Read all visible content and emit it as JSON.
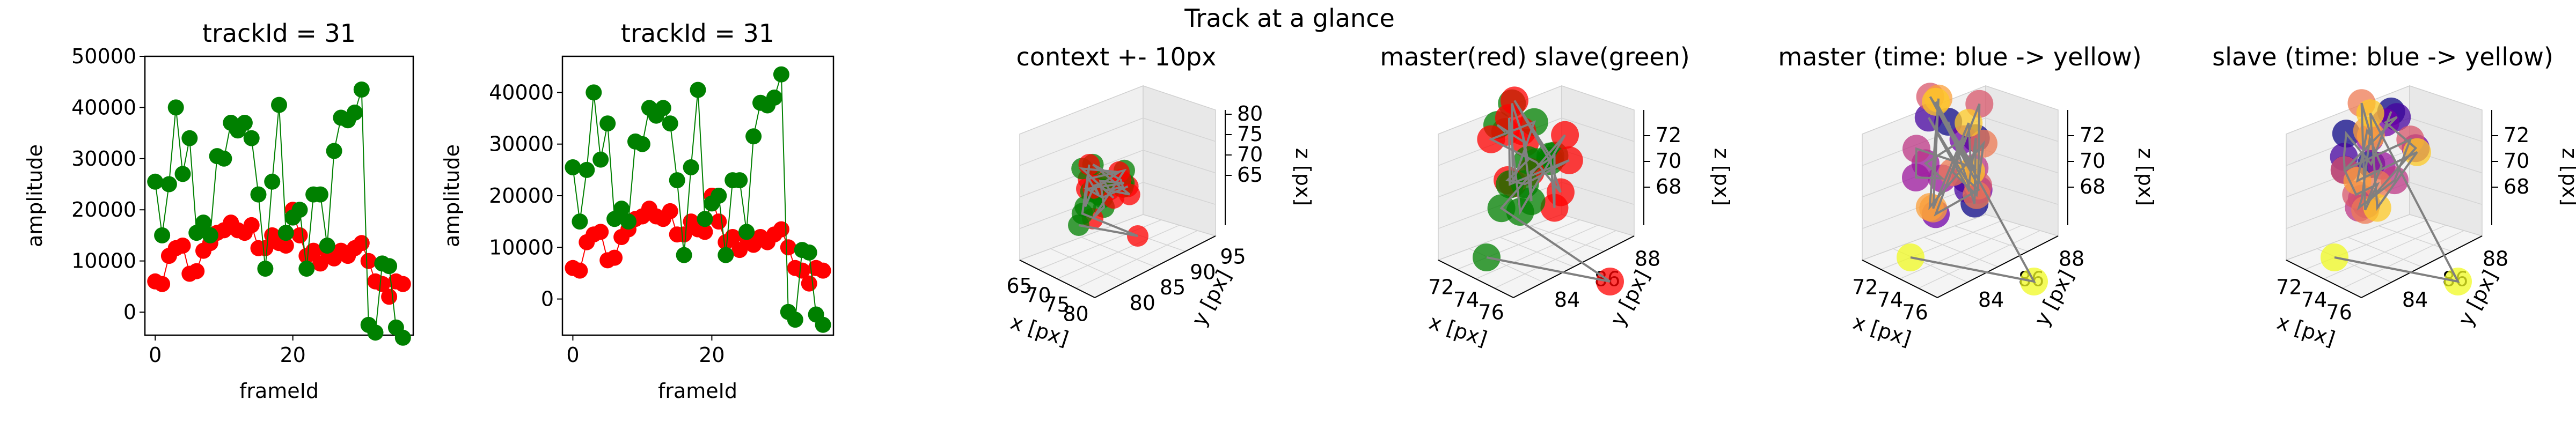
{
  "figure": {
    "suptitle": "Track at a glance"
  },
  "colors": {
    "master": "#ff0000",
    "slave": "#008000",
    "line": "#808080",
    "axis": "#000000"
  },
  "chart_data": [
    {
      "type": "line",
      "title": "trackId = 31",
      "xlabel": "frameId",
      "ylabel": "amplitude",
      "xlim": [
        -1.5,
        37.5
      ],
      "ylim": [
        -4500,
        50000
      ],
      "xticks": [
        0,
        20
      ],
      "yticks": [
        0,
        10000,
        20000,
        30000,
        40000,
        50000
      ],
      "series": [
        {
          "color": "red",
          "x": [
            0,
            1,
            2,
            3,
            4,
            5,
            6,
            7,
            8,
            9,
            10,
            11,
            12,
            13,
            14,
            15,
            16,
            17,
            18,
            19,
            20,
            21,
            22,
            23,
            24,
            25,
            26,
            27,
            28,
            29,
            30,
            31,
            32,
            33,
            34,
            35,
            36
          ],
          "values": [
            6000,
            5500,
            11000,
            12500,
            13000,
            7500,
            8000,
            12000,
            13500,
            15500,
            16000,
            17500,
            16000,
            15500,
            17000,
            12500,
            12500,
            15000,
            13500,
            13000,
            20000,
            15000,
            11000,
            12000,
            9500,
            12000,
            10500,
            12000,
            11000,
            12500,
            13500,
            10000,
            6000,
            5500,
            3000,
            6000,
            5500
          ]
        },
        {
          "color": "green",
          "x": [
            0,
            1,
            2,
            3,
            4,
            5,
            6,
            7,
            8,
            9,
            10,
            11,
            12,
            13,
            14,
            15,
            16,
            17,
            18,
            19,
            20,
            21,
            22,
            23,
            24,
            25,
            26,
            27,
            28,
            29,
            30,
            31,
            32,
            33,
            34,
            35,
            36
          ],
          "values": [
            25500,
            15000,
            25000,
            40000,
            27000,
            34000,
            15500,
            17500,
            15000,
            30500,
            30000,
            37000,
            35500,
            37000,
            34000,
            23000,
            8500,
            25500,
            40500,
            15500,
            18500,
            20000,
            8500,
            23000,
            23000,
            13000,
            31500,
            38000,
            37500,
            39000,
            43500,
            -2500,
            -4000,
            9500,
            9000,
            -3000,
            -5000
          ]
        }
      ]
    },
    {
      "type": "line",
      "title": "trackId = 31",
      "xlabel": "frameId",
      "ylabel": "amplitude",
      "xlim": [
        -1.5,
        37.5
      ],
      "ylim": [
        -7000,
        47000
      ],
      "xticks": [
        0,
        20
      ],
      "yticks": [
        0,
        10000,
        20000,
        30000,
        40000
      ],
      "series": [
        {
          "color": "red",
          "x": [
            0,
            1,
            2,
            3,
            4,
            5,
            6,
            7,
            8,
            9,
            10,
            11,
            12,
            13,
            14,
            15,
            16,
            17,
            18,
            19,
            20,
            21,
            22,
            23,
            24,
            25,
            26,
            27,
            28,
            29,
            30,
            31,
            32,
            33,
            34,
            35,
            36
          ],
          "values": [
            6000,
            5500,
            11000,
            12500,
            13000,
            7500,
            8000,
            12000,
            13500,
            15500,
            16000,
            17500,
            16000,
            15500,
            17000,
            12500,
            12500,
            15000,
            13500,
            13000,
            20000,
            15000,
            11000,
            12000,
            9500,
            12000,
            10500,
            12000,
            11000,
            12500,
            13500,
            10000,
            6000,
            5500,
            3000,
            6000,
            5500
          ]
        },
        {
          "color": "green",
          "x": [
            0,
            1,
            2,
            3,
            4,
            5,
            6,
            7,
            8,
            9,
            10,
            11,
            12,
            13,
            14,
            15,
            16,
            17,
            18,
            19,
            20,
            21,
            22,
            23,
            24,
            25,
            26,
            27,
            28,
            29,
            30,
            31,
            32,
            33,
            34,
            35,
            36
          ],
          "values": [
            25500,
            15000,
            25000,
            40000,
            27000,
            34000,
            15500,
            17500,
            15000,
            30500,
            30000,
            37000,
            35500,
            37000,
            34000,
            23000,
            8500,
            25500,
            40500,
            15500,
            18500,
            20000,
            8500,
            23000,
            23000,
            13000,
            31500,
            38000,
            37500,
            39000,
            43500,
            -2500,
            -4000,
            9500,
            9000,
            -3000,
            -5000
          ]
        }
      ]
    },
    {
      "type": "scatter",
      "projection": "3d",
      "title": "context +- 10px",
      "xlabel": "x [px]",
      "ylabel": "y [px]",
      "zlabel": "z [px]",
      "xticks": [
        65,
        70,
        75,
        80
      ],
      "yticks": [
        80,
        85,
        90,
        95
      ],
      "zticks": [
        65,
        70,
        75,
        80
      ]
    },
    {
      "type": "scatter",
      "projection": "3d",
      "title": "master(red) slave(green)",
      "xlabel": "x [px]",
      "ylabel": "y [px]",
      "zlabel": "z [px]",
      "xticks": [
        72,
        74,
        76
      ],
      "yticks": [
        84,
        86,
        88
      ],
      "zticks": [
        68,
        70,
        72
      ]
    },
    {
      "type": "scatter",
      "projection": "3d",
      "title": "master (time: blue -> yellow)",
      "xlabel": "x [px]",
      "ylabel": "y [px]",
      "zlabel": "z [px]",
      "xticks": [
        72,
        74,
        76
      ],
      "yticks": [
        84,
        86,
        88
      ],
      "zticks": [
        68,
        70,
        72
      ]
    },
    {
      "type": "scatter",
      "projection": "3d",
      "title": "slave (time: blue -> yellow)",
      "xlabel": "x [px]",
      "ylabel": "y [px]",
      "zlabel": "z [px]",
      "xticks": [
        72,
        74,
        76
      ],
      "yticks": [
        84,
        86,
        88
      ],
      "zticks": [
        68,
        70,
        72
      ]
    }
  ]
}
